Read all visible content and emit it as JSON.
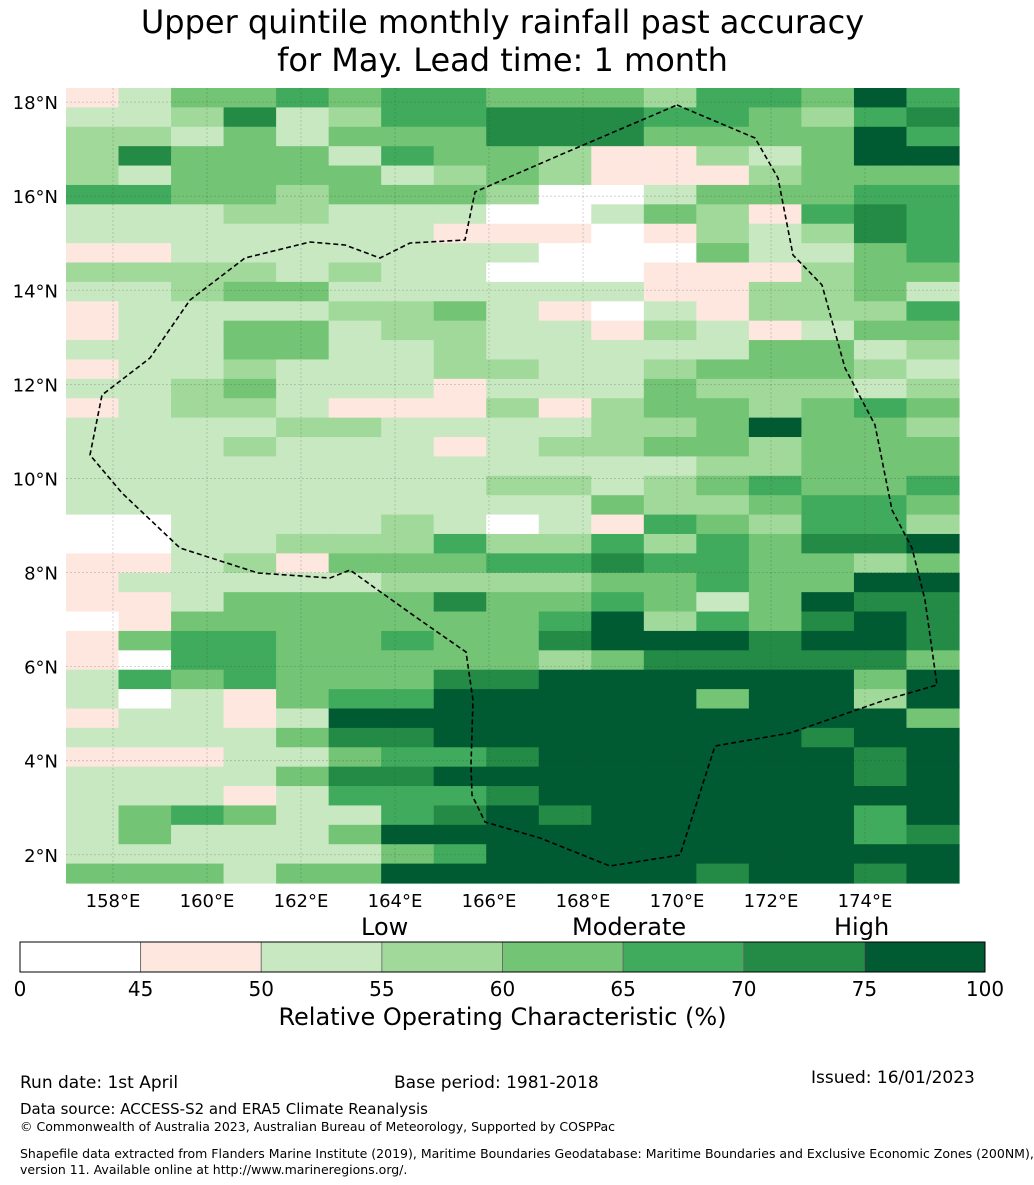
{
  "title_line1": "Upper quintile monthly rainfall past accuracy",
  "title_line2": "for May. Lead time: 1 month",
  "map": {
    "lat_labels": [
      "18°N",
      "16°N",
      "14°N",
      "12°N",
      "10°N",
      "8°N",
      "6°N",
      "4°N",
      "2°N"
    ],
    "lon_labels": [
      "158°E",
      "160°E",
      "162°E",
      "164°E",
      "166°E",
      "168°E",
      "170°E",
      "172°E",
      "174°E"
    ],
    "lat_values": [
      18,
      16,
      14,
      12,
      10,
      8,
      6,
      4,
      2
    ],
    "lon_values": [
      158,
      160,
      162,
      164,
      166,
      168,
      170,
      172,
      174
    ],
    "lon_range": [
      157,
      176
    ],
    "lat_range": [
      1.4,
      18.3
    ],
    "grid": true,
    "grid_note": "cell class codes 0-7 map to colorbar bins; row 0 is northernmost",
    "cells": [
      "12445455444355475",
      "22362355666554356",
      "33242444666444475",
      "36444254431132477",
      "32444423431113444",
      "55443444300244455",
      "22233222002431565",
      "22222221110132365",
      "11222222200042245",
      "33332322000111344",
      "22344222222113342",
      "12222334210213335",
      "12244233221321244",
      "22244223222224423",
      "12232223322344432",
      "22342221222433323",
      "12332111313443454",
      "22223322223347443",
      "22232221233443444",
      "22222222222233444",
      "22222222332345445",
      "22222222224334554",
      "00222232021543553",
      "00223335335354667",
      "11231444556554434",
      "12222233334454477",
      "11244446445424766",
      "01444444457354676",
      "14554454467776776",
      "10554444434666664",
      "25454446677777747",
      "20214557777747737",
      "12212777777777774",
      "22224667777777677",
      "11122455677777767",
      "22224667777777767",
      "22212555677777777",
      "24542256767777757",
      "24222477777777756",
      "22222245777777777",
      "44424477777767767"
    ]
  },
  "colorbar": {
    "ticks": [
      "0",
      "45",
      "50",
      "55",
      "60",
      "65",
      "70",
      "75",
      "100"
    ],
    "colors": [
      "#ffffff",
      "#fde7df",
      "#c7e8c0",
      "#a1d99b",
      "#74c476",
      "#41ab5d",
      "#238b45",
      "#005a32"
    ],
    "category_labels": [
      "Low",
      "Moderate",
      "High"
    ],
    "title": "Relative Operating Characteristic (%)"
  },
  "footer": {
    "run_date": "Run date: 1st April",
    "base_period": "Base period: 1981-2018",
    "issued": "Issued: 16/01/2023",
    "data_source": "Data source: ACCESS-S2 and ERA5 Climate Reanalysis",
    "copyright": "© Commonwealth of Australia 2023, Australian Bureau of Meteorology, Supported by COSPPac",
    "shapefile_line1": "Shapefile data extracted from Flanders Marine Institute (2019), Maritime Boundaries Geodatabase: Maritime Boundaries and Exclusive Economic Zones (200NM),",
    "shapefile_line2": "version 11. Available online at http://www.marineregions.org/."
  }
}
